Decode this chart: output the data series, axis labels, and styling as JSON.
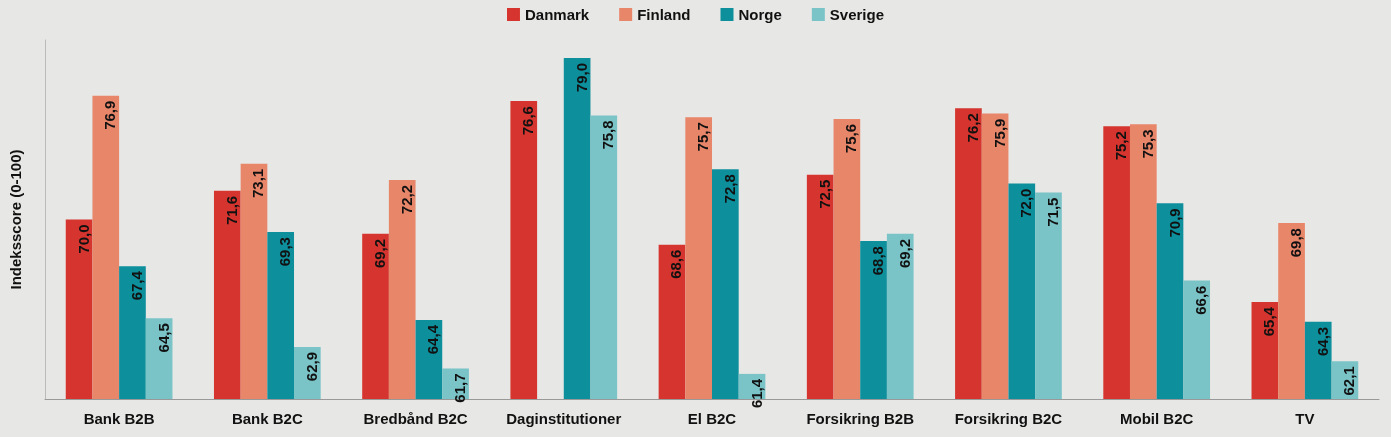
{
  "chart_data": {
    "type": "bar",
    "ylabel": "Indeksscore (0-100)",
    "categories": [
      "Bank B2B",
      "Bank B2C",
      "Bredbånd B2C",
      "Daginstitutioner",
      "El B2C",
      "Forsikring B2B",
      "Forsikring B2C",
      "Mobil B2C",
      "TV"
    ],
    "series": [
      {
        "name": "Danmark",
        "color": "#d5352e",
        "values": [
          70.0,
          71.6,
          69.2,
          76.6,
          68.6,
          72.5,
          76.2,
          75.2,
          65.4
        ],
        "value_labels": [
          "70,0",
          "71,6",
          "69,2",
          "76,6",
          "68,6",
          "72,5",
          "76,2",
          "75,2",
          "65,4"
        ]
      },
      {
        "name": "Finland",
        "color": "#e8866a",
        "values": [
          76.9,
          73.1,
          72.2,
          null,
          75.7,
          75.6,
          75.9,
          75.3,
          69.8
        ],
        "value_labels": [
          "76,9",
          "73,1",
          "72,2",
          null,
          "75,7",
          "75,6",
          "75,9",
          "75,3",
          "69,8"
        ]
      },
      {
        "name": "Norge",
        "color": "#0e8f9c",
        "values": [
          67.4,
          69.3,
          64.4,
          79.0,
          72.8,
          68.8,
          72.0,
          70.9,
          64.3
        ],
        "value_labels": [
          "67,4",
          "69,3",
          "64,4",
          "79,0",
          "72,8",
          "68,8",
          "72,0",
          "70,9",
          "64,3"
        ]
      },
      {
        "name": "Sverige",
        "color": "#7ac4c8",
        "values": [
          64.5,
          62.9,
          61.7,
          75.8,
          61.4,
          69.2,
          71.5,
          66.6,
          62.1
        ],
        "value_labels": [
          "64,5",
          "62,9",
          "61,7",
          "75,8",
          "61,4",
          "69,2",
          "71,5",
          "66,6",
          "62,1"
        ]
      }
    ],
    "ylim": [
      60,
      80
    ],
    "tick_labels": "x",
    "legend": "top",
    "grid": false
  }
}
